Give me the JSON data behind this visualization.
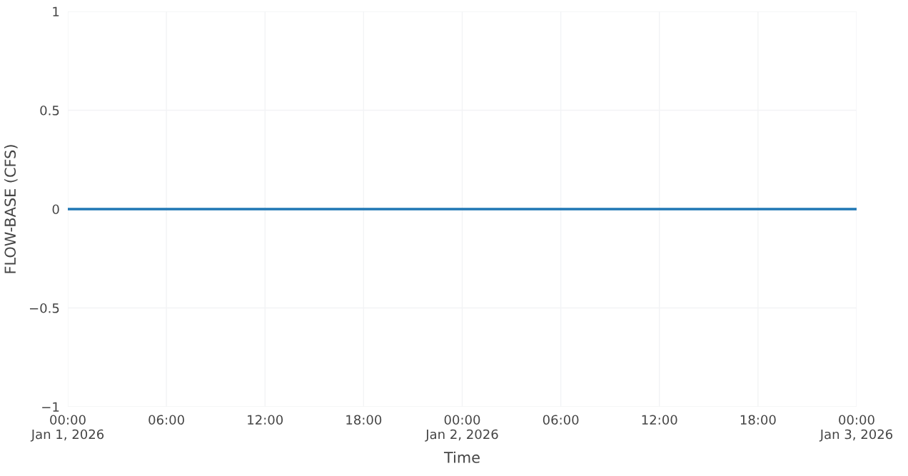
{
  "chart_data": {
    "type": "line",
    "xlabel": "Time",
    "ylabel": "FLOW-BASE (CFS)",
    "x": [
      "2026-01-01T00:00",
      "2026-01-01T06:00",
      "2026-01-01T12:00",
      "2026-01-01T18:00",
      "2026-01-02T00:00",
      "2026-01-02T06:00",
      "2026-01-02T12:00",
      "2026-01-02T18:00",
      "2026-01-03T00:00"
    ],
    "series": [
      {
        "color": "#1f77b4",
        "values": [
          0,
          0,
          0,
          0,
          0,
          0,
          0,
          0,
          0
        ]
      }
    ],
    "xlim": [
      "2026-01-01T00:00",
      "2026-01-03T00:00"
    ],
    "xticks": [
      {
        "value": "2026-01-01T00:00",
        "label": "00:00\nJan 1, 2026"
      },
      {
        "value": "2026-01-01T06:00",
        "label": "06:00"
      },
      {
        "value": "2026-01-01T12:00",
        "label": "12:00"
      },
      {
        "value": "2026-01-01T18:00",
        "label": "18:00"
      },
      {
        "value": "2026-01-02T00:00",
        "label": "00:00\nJan 2, 2026"
      },
      {
        "value": "2026-01-02T06:00",
        "label": "06:00"
      },
      {
        "value": "2026-01-02T12:00",
        "label": "12:00"
      },
      {
        "value": "2026-01-02T18:00",
        "label": "18:00"
      },
      {
        "value": "2026-01-03T00:00",
        "label": "00:00\nJan 3, 2026"
      }
    ],
    "ylim": [
      -1,
      1
    ],
    "yticks": [
      {
        "value": -1,
        "label": "−1"
      },
      {
        "value": -0.5,
        "label": "−0.5"
      },
      0,
      0.5,
      1
    ],
    "grid": true,
    "marker": "none",
    "line_style": "solid"
  }
}
